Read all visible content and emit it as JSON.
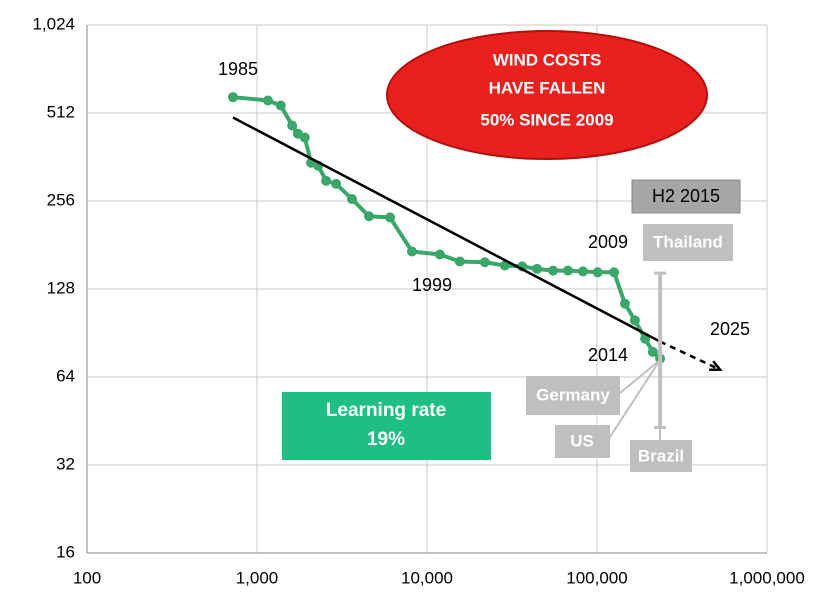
{
  "chart_data": {
    "type": "line",
    "xscale": "log",
    "yscale": "log",
    "xlim": [
      100,
      1000000
    ],
    "ylim": [
      16,
      1024
    ],
    "xticks": [
      100,
      {
        "value": 1000,
        "label": "1,000"
      },
      {
        "value": 10000,
        "label": "10,000"
      },
      {
        "value": 100000,
        "label": "100,000"
      },
      {
        "value": 1000000,
        "label": "1,000,000"
      }
    ],
    "yticks": [
      16,
      32,
      64,
      128,
      256,
      512,
      {
        "value": 1024,
        "label": "1,024"
      }
    ],
    "grid": true,
    "series": [
      {
        "color": "#3aa66a",
        "x": [
          722,
          1160,
          1380,
          1610,
          1740,
          1910,
          2080,
          2290,
          2550,
          2920,
          3620,
          4560,
          6060,
          8160,
          11900,
          15600,
          21900,
          28700,
          36300,
          44400,
          55100,
          67500,
          82700,
          101000,
          126000,
          146000,
          167000,
          192000,
          213000,
          235000
        ],
        "values": [
          580,
          565,
          543,
          464,
          435,
          422,
          346,
          338,
          300,
          293,
          260,
          227,
          225,
          172,
          168,
          159,
          158,
          154,
          153,
          150,
          148,
          148,
          147,
          146,
          146,
          114,
          100,
          86.5,
          78,
          74
        ]
      },
      {
        "color": "#000000",
        "x": [
          722,
          235000
        ],
        "values": [
          494,
          84.6
        ]
      },
      {
        "color": "#000000",
        "dashed": true,
        "x": [
          235000,
          530000
        ],
        "values": [
          84.6,
          67.8
        ]
      }
    ],
    "range": {
      "x": 235000,
      "low": 43,
      "high": 145,
      "color": "#bfbfbf"
    },
    "annotations": [
      "1985",
      "1999",
      "2009",
      "2014",
      "2025",
      "H2 2015",
      "Thailand",
      "Germany",
      "US",
      "Brazil"
    ],
    "callout": [
      "WIND COSTS",
      "HAVE FALLEN",
      "50% SINCE 2009"
    ],
    "learning_box": [
      "Learning rate",
      "19%"
    ]
  }
}
